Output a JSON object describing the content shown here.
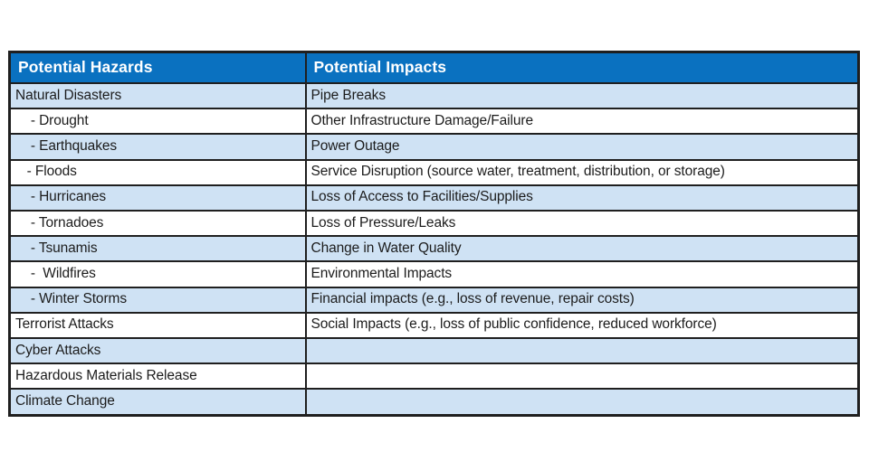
{
  "colors": {
    "header_bg": "#0a71c0",
    "header_text": "#ffffff",
    "row_shaded_bg": "#cfe2f4",
    "row_plain_bg": "#ffffff",
    "border": "#1f1f1f",
    "body_text": "#1c1c1c"
  },
  "table": {
    "columns": [
      {
        "header": "Potential Hazards"
      },
      {
        "header": "Potential Impacts"
      }
    ],
    "rows": [
      {
        "hazard": "Natural Disasters",
        "impact": "Pipe Breaks",
        "shaded": true
      },
      {
        "hazard": "    - Drought",
        "impact": "Other Infrastructure Damage/Failure",
        "shaded": false
      },
      {
        "hazard": "    - Earthquakes",
        "impact": "Power Outage",
        "shaded": true
      },
      {
        "hazard": "   - Floods",
        "impact": "Service Disruption (source water, treatment, distribution, or storage)",
        "shaded": false
      },
      {
        "hazard": "    - Hurricanes",
        "impact": "Loss of Access to Facilities/Supplies",
        "shaded": true
      },
      {
        "hazard": "    - Tornadoes",
        "impact": "Loss of Pressure/Leaks",
        "shaded": false
      },
      {
        "hazard": "    - Tsunamis",
        "impact": "Change in Water Quality",
        "shaded": true
      },
      {
        "hazard": "    -  Wildfires",
        "impact": "Environmental Impacts",
        "shaded": false
      },
      {
        "hazard": "    - Winter Storms",
        "impact": "Financial impacts (e.g., loss of revenue, repair costs)",
        "shaded": true
      },
      {
        "hazard": "Terrorist Attacks",
        "impact": "Social Impacts (e.g., loss of public confidence, reduced workforce)",
        "shaded": false
      },
      {
        "hazard": "Cyber Attacks",
        "impact": "",
        "shaded": true
      },
      {
        "hazard": "Hazardous Materials Release",
        "impact": "",
        "shaded": false
      },
      {
        "hazard": "Climate Change",
        "impact": "",
        "shaded": true
      }
    ]
  }
}
